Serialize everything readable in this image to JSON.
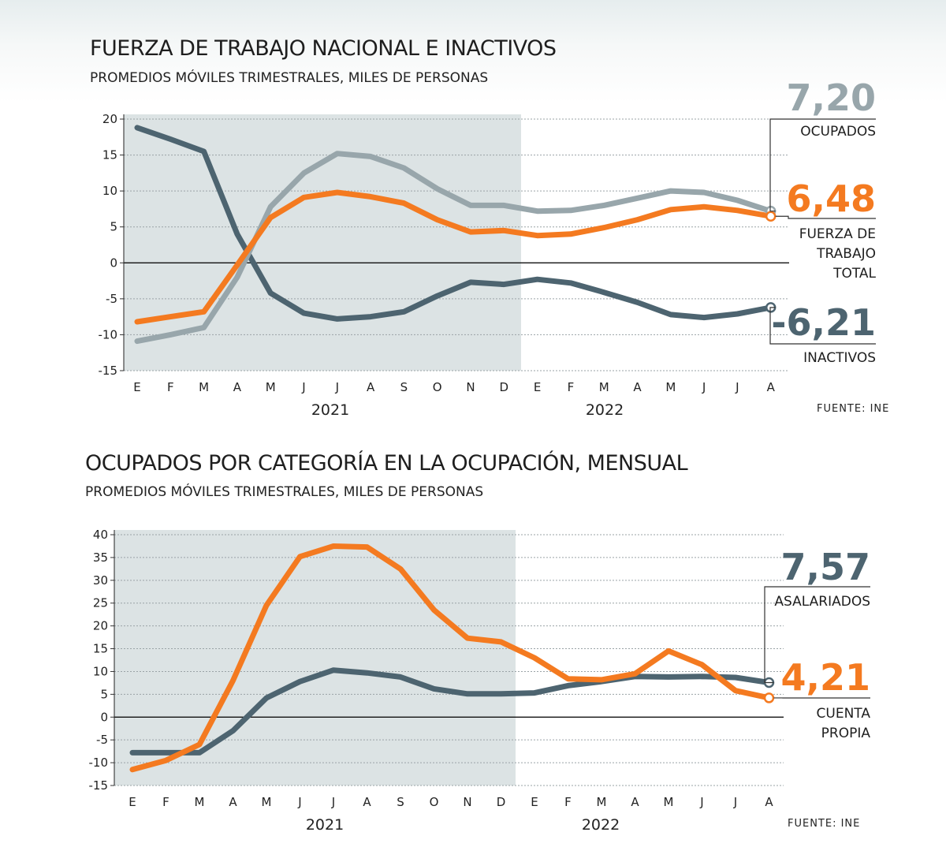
{
  "chart_data": [
    {
      "type": "line",
      "title": "FUERZA DE TRABAJO NACIONAL E INACTIVOS",
      "subtitle": "PROMEDIOS MÓVILES TRIMESTRALES, MILES DE PERSONAS",
      "source": "FUENTE: INE",
      "categories": [
        "E",
        "F",
        "M",
        "A",
        "M",
        "J",
        "J",
        "A",
        "S",
        "O",
        "N",
        "D",
        "E",
        "F",
        "M",
        "A",
        "M",
        "J",
        "J",
        "A"
      ],
      "years": [
        {
          "label": "2021"
        },
        {
          "label": "2022"
        }
      ],
      "ylim": [
        -15,
        20
      ],
      "yticks": [
        20,
        15,
        10,
        5,
        0,
        -5,
        -10,
        -15
      ],
      "ytick_labels": [
        "20",
        "15",
        "10",
        "5",
        "0",
        "-5",
        "-10",
        "-15"
      ],
      "shaded_period": "2021",
      "series": [
        {
          "name": "INACTIVOS",
          "color": "#4d6470",
          "values": [
            18.8,
            17.2,
            15.5,
            4.0,
            -4.2,
            -7.0,
            -7.8,
            -7.5,
            -6.8,
            -4.6,
            -2.7,
            -3.0,
            -2.3,
            -2.8,
            -4.1,
            -5.5,
            -7.2,
            -7.6,
            -7.1,
            -6.21
          ],
          "end_label": "-6,21"
        },
        {
          "name": "OCUPADOS",
          "color": "#98a6ab",
          "values": [
            -10.9,
            -10.0,
            -9.0,
            -2.0,
            7.8,
            12.5,
            15.2,
            14.8,
            13.2,
            10.3,
            8.0,
            8.0,
            7.2,
            7.3,
            8.0,
            9.0,
            10.0,
            9.8,
            8.7,
            7.2
          ],
          "end_label": "7,20"
        },
        {
          "name": "FUERZA DE TRABAJO TOTAL",
          "label_lines": [
            "FUERZA DE",
            "TRABAJO",
            "TOTAL"
          ],
          "color": "#f47a20",
          "values": [
            -8.2,
            -7.5,
            -6.8,
            -0.3,
            6.3,
            9.1,
            9.8,
            9.2,
            8.3,
            6.0,
            4.3,
            4.5,
            3.8,
            4.0,
            4.9,
            6.0,
            7.4,
            7.8,
            7.3,
            6.48
          ],
          "end_label": "6,48"
        }
      ]
    },
    {
      "type": "line",
      "title": "OCUPADOS POR CATEGORÍA EN LA OCUPACIÓN, MENSUAL",
      "subtitle": "PROMEDIOS MÓVILES TRIMESTRALES, MILES DE PERSONAS",
      "source": "FUENTE: INE",
      "categories": [
        "E",
        "F",
        "M",
        "A",
        "M",
        "J",
        "J",
        "A",
        "S",
        "O",
        "N",
        "D",
        "E",
        "F",
        "M",
        "A",
        "M",
        "J",
        "J",
        "A"
      ],
      "years": [
        {
          "label": "2021"
        },
        {
          "label": "2022"
        }
      ],
      "ylim": [
        -15,
        40
      ],
      "yticks": [
        40,
        35,
        30,
        25,
        20,
        15,
        10,
        5,
        0,
        -5,
        -10,
        -15
      ],
      "ytick_labels": [
        "40",
        "35",
        "30",
        "25",
        "20",
        "15",
        "10",
        "5",
        "0",
        "-5",
        "-10",
        "-15"
      ],
      "shaded_period": "2021",
      "series": [
        {
          "name": "ASALARIADOS",
          "color": "#4d6470",
          "values": [
            -7.8,
            -7.8,
            -7.8,
            -3.0,
            4.2,
            7.8,
            10.3,
            9.7,
            8.8,
            6.2,
            5.1,
            5.1,
            5.3,
            6.9,
            7.8,
            8.9,
            8.8,
            8.9,
            8.7,
            7.57
          ],
          "end_label": "7,57"
        },
        {
          "name": "CUENTA PROPIA",
          "label_lines": [
            "CUENTA",
            "PROPIA"
          ],
          "color": "#f47a20",
          "values": [
            -11.5,
            -9.5,
            -6.0,
            8.0,
            24.5,
            35.2,
            37.5,
            37.3,
            32.5,
            23.5,
            17.3,
            16.5,
            13.0,
            8.4,
            8.2,
            9.5,
            14.5,
            11.5,
            5.8,
            4.21
          ],
          "end_label": "4,21"
        }
      ]
    }
  ]
}
